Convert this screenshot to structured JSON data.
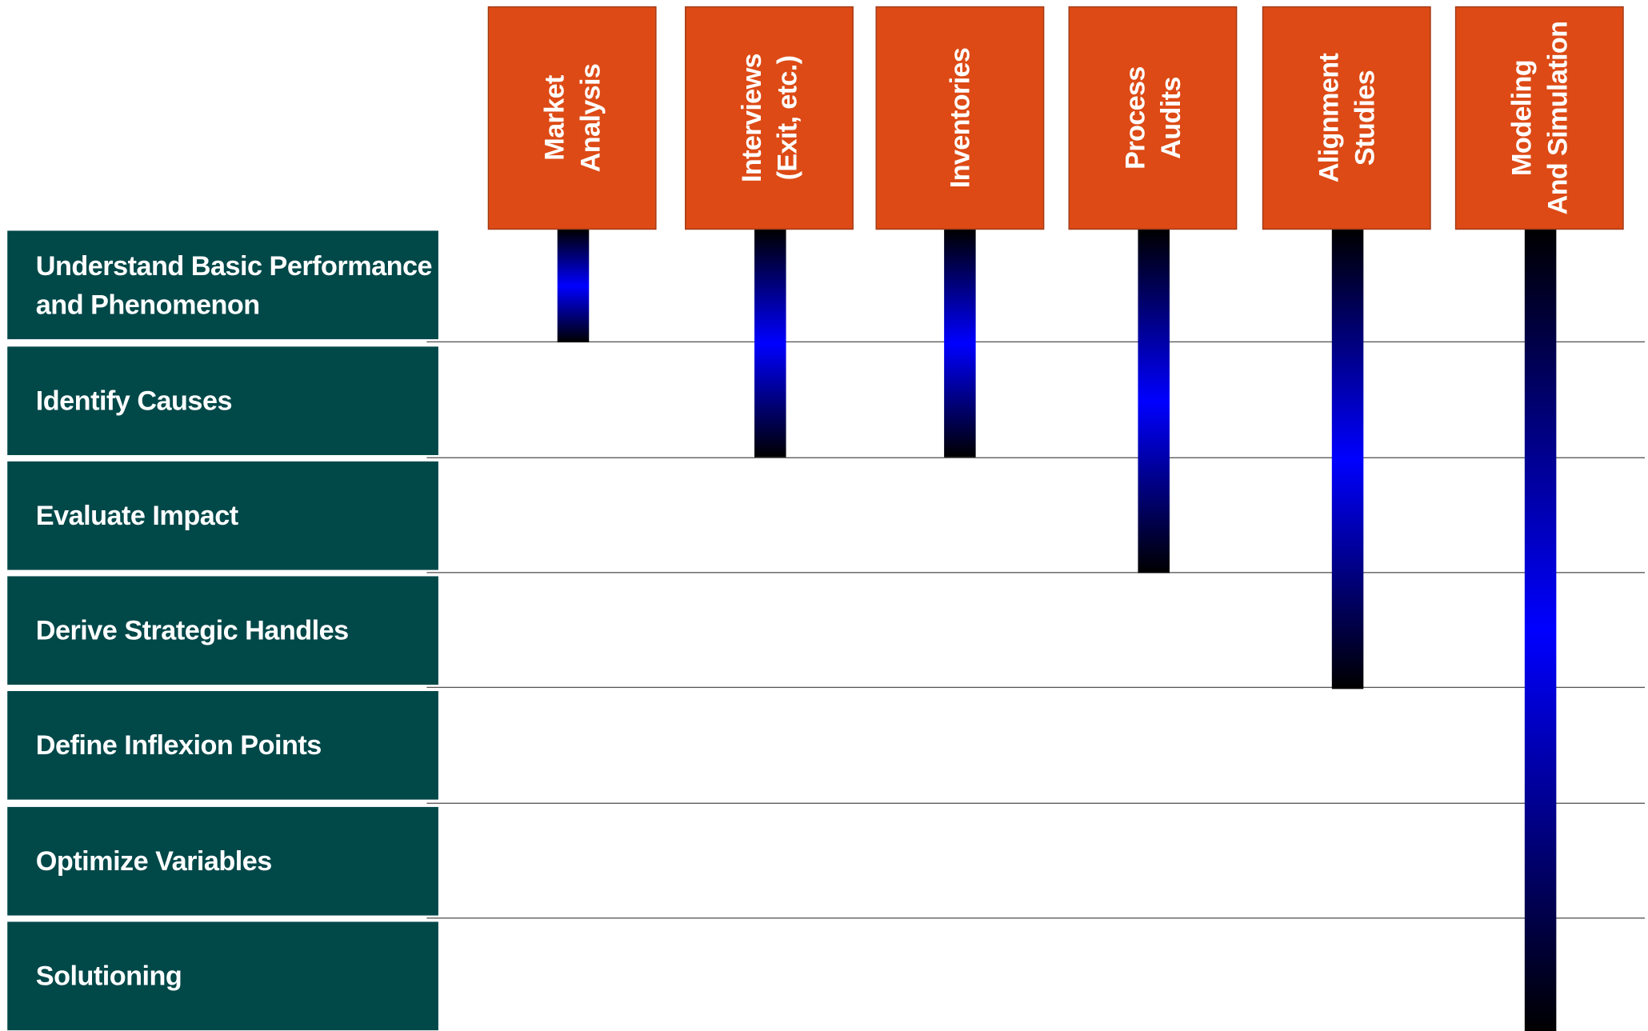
{
  "columns": [
    {
      "label": "Market\nAnalysis",
      "from_row": 0,
      "to_row": 0
    },
    {
      "label": "Interviews\n(Exit, etc.)",
      "from_row": 0,
      "to_row": 1
    },
    {
      "label": "Inventories",
      "from_row": 0,
      "to_row": 1
    },
    {
      "label": "Process\nAudits",
      "from_row": 0,
      "to_row": 2
    },
    {
      "label": "Alignment\nStudies",
      "from_row": 0,
      "to_row": 3
    },
    {
      "label": "Modeling\nAnd Simulation",
      "from_row": 0,
      "to_row": 6
    }
  ],
  "rows": [
    {
      "label": "Understand Basic Performance\nand Phenomenon"
    },
    {
      "label": "Identify Causes"
    },
    {
      "label": "Evaluate Impact"
    },
    {
      "label": "Derive Strategic Handles"
    },
    {
      "label": "Define Inflexion Points"
    },
    {
      "label": "Optimize Variables"
    },
    {
      "label": "Solutioning"
    }
  ],
  "colors": {
    "column_header": "#dd4a15",
    "row_header": "#014849",
    "bar_gradient_center": "#0000ff",
    "bar_gradient_ends": "#000000"
  }
}
